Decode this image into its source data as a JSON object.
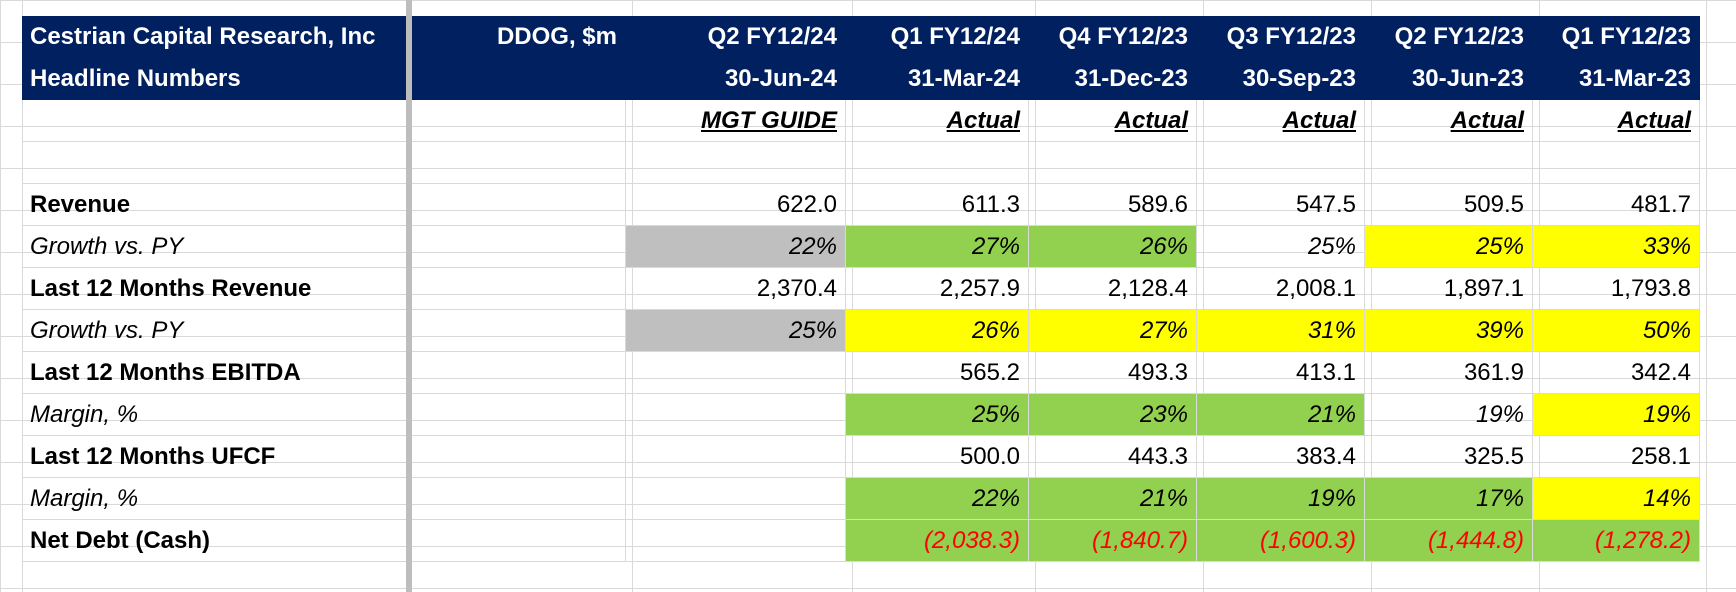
{
  "header": {
    "company": "Cestrian Capital Research, Inc",
    "subtitle": "Headline Numbers",
    "ticker": "DDOG, $m",
    "periods": [
      {
        "quarter": "Q2 FY12/24",
        "date": "30-Jun-24",
        "basis": "MGT GUIDE"
      },
      {
        "quarter": "Q1 FY12/24",
        "date": "31-Mar-24",
        "basis": "Actual"
      },
      {
        "quarter": "Q4 FY12/23",
        "date": "31-Dec-23",
        "basis": "Actual"
      },
      {
        "quarter": "Q3 FY12/23",
        "date": "30-Sep-23",
        "basis": "Actual"
      },
      {
        "quarter": "Q2 FY12/23",
        "date": "30-Jun-23",
        "basis": "Actual"
      },
      {
        "quarter": "Q1 FY12/23",
        "date": "31-Mar-23",
        "basis": "Actual"
      }
    ]
  },
  "rows": {
    "revenue": {
      "label": "Revenue",
      "values": [
        "622.0",
        "611.3",
        "589.6",
        "547.5",
        "509.5",
        "481.7"
      ]
    },
    "revenue_growth": {
      "label": "Growth vs. PY",
      "values": [
        "22%",
        "27%",
        "26%",
        "25%",
        "25%",
        "33%"
      ]
    },
    "ltm_revenue": {
      "label": "Last 12 Months Revenue",
      "values": [
        "2,370.4",
        "2,257.9",
        "2,128.4",
        "2,008.1",
        "1,897.1",
        "1,793.8"
      ]
    },
    "ltm_revenue_growth": {
      "label": "Growth vs. PY",
      "values": [
        "25%",
        "26%",
        "27%",
        "31%",
        "39%",
        "50%"
      ]
    },
    "ltm_ebitda": {
      "label": "Last 12 Months EBITDA",
      "values": [
        "",
        "565.2",
        "493.3",
        "413.1",
        "361.9",
        "342.4"
      ]
    },
    "ebitda_margin": {
      "label": "Margin, %",
      "values": [
        "",
        "25%",
        "23%",
        "21%",
        "19%",
        "19%"
      ]
    },
    "ltm_ufcf": {
      "label": "Last 12 Months UFCF",
      "values": [
        "",
        "500.0",
        "443.3",
        "383.4",
        "325.5",
        "258.1"
      ]
    },
    "ufcf_margin": {
      "label": "Margin, %",
      "values": [
        "",
        "22%",
        "21%",
        "19%",
        "17%",
        "14%"
      ]
    },
    "net_debt": {
      "label": "Net Debt (Cash)",
      "values": [
        "",
        "(2,038.3)",
        "(1,840.7)",
        "(1,600.3)",
        "(1,444.8)",
        "(1,278.2)"
      ]
    }
  },
  "colors": {
    "header_bg": "#002060",
    "grey_fill": "#bfbfbf",
    "green_fill": "#92d050",
    "yellow_fill": "#ffff00",
    "negative_text": "#ff0000"
  }
}
